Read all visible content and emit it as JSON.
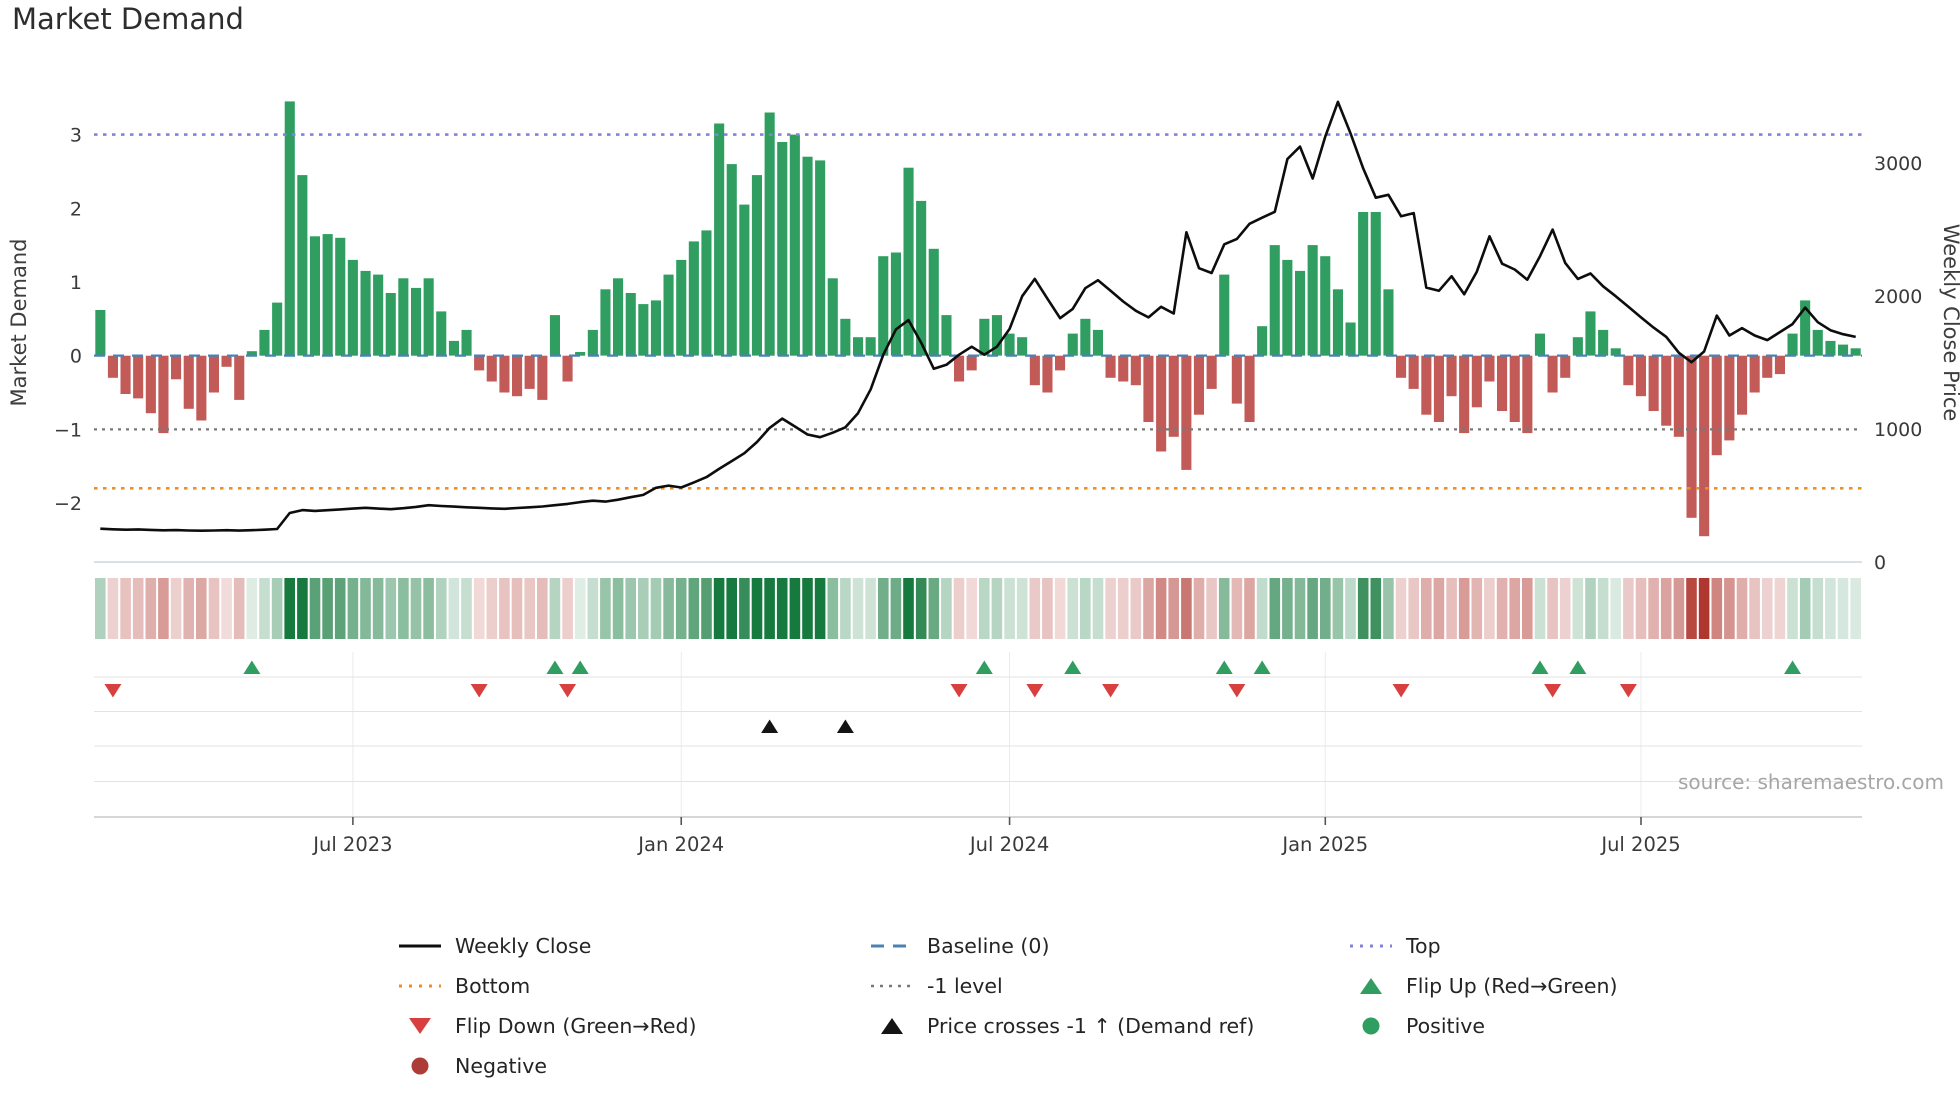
{
  "title": "Market Demand",
  "legend": {
    "weekly_close": "Weekly Close",
    "baseline": "Baseline (0)",
    "top": "Top",
    "bottom": "Bottom",
    "minus1": "-1 level",
    "flip_up": "Flip Up (Red→Green)",
    "flip_down": "Flip Down (Green→Red)",
    "price_cross": "Price crosses -1 ↑ (Demand ref)",
    "positive": "Positive",
    "negative": "Negative"
  },
  "chart_data": {
    "type": "combo",
    "title": "Market Demand",
    "source": "source: sharemaestro.com",
    "left_axis": {
      "label": "Market Demand",
      "ticks": [
        3,
        2,
        1,
        0,
        -1,
        -2
      ],
      "range": [
        -2.8,
        3.7
      ]
    },
    "right_axis": {
      "label": "Weekly Close Price",
      "ticks": [
        3000,
        2000,
        1000,
        0
      ],
      "range": [
        0,
        3600
      ]
    },
    "x_ticks": [
      {
        "label": "Jul 2023",
        "week": 20.5
      },
      {
        "label": "Jan 2024",
        "week": 46.5
      },
      {
        "label": "Jul 2024",
        "week": 72.5
      },
      {
        "label": "Jan 2025",
        "week": 97.5
      },
      {
        "label": "Jul 2025",
        "week": 122.5
      }
    ],
    "reference_lines": {
      "top": 3.0,
      "baseline": 0,
      "minus1": -1.0,
      "bottom": -1.8
    },
    "series": [
      {
        "name": "Market Demand",
        "type": "bar",
        "values": [
          0.62,
          -0.3,
          -0.52,
          -0.58,
          -0.78,
          -1.05,
          -0.32,
          -0.72,
          -0.88,
          -0.5,
          -0.15,
          -0.6,
          0.06,
          0.35,
          0.72,
          3.45,
          2.45,
          1.62,
          1.65,
          1.6,
          1.3,
          1.15,
          1.1,
          0.85,
          1.05,
          0.92,
          1.05,
          0.6,
          0.2,
          0.35,
          -0.2,
          -0.35,
          -0.5,
          -0.55,
          -0.45,
          -0.6,
          0.55,
          -0.35,
          0.05,
          0.35,
          0.9,
          1.05,
          0.85,
          0.7,
          0.75,
          1.1,
          1.3,
          1.55,
          1.7,
          3.15,
          2.6,
          2.05,
          2.45,
          3.3,
          2.9,
          3.0,
          2.7,
          2.65,
          1.05,
          0.5,
          0.25,
          0.25,
          1.35,
          1.4,
          2.55,
          2.1,
          1.45,
          0.55,
          -0.35,
          -0.2,
          0.5,
          0.55,
          0.3,
          0.25,
          -0.4,
          -0.5,
          -0.2,
          0.3,
          0.5,
          0.35,
          -0.3,
          -0.35,
          -0.4,
          -0.9,
          -1.3,
          -1.1,
          -1.55,
          -0.8,
          -0.45,
          1.1,
          -0.65,
          -0.9,
          0.4,
          1.5,
          1.3,
          1.15,
          1.5,
          1.35,
          0.9,
          0.45,
          1.95,
          1.95,
          0.9,
          -0.3,
          -0.45,
          -0.8,
          -0.9,
          -0.55,
          -1.05,
          -0.7,
          -0.35,
          -0.75,
          -0.9,
          -1.05,
          0.3,
          -0.5,
          -0.3,
          0.25,
          0.6,
          0.35,
          0.1,
          -0.4,
          -0.55,
          -0.75,
          -0.95,
          -1.1,
          -2.2,
          -2.45,
          -1.35,
          -1.15,
          -0.8,
          -0.5,
          -0.3,
          -0.25,
          0.3,
          0.75,
          0.35,
          0.2,
          0.15,
          0.1
        ]
      },
      {
        "name": "Weekly Close",
        "type": "line",
        "values": [
          250,
          246,
          243,
          245,
          241,
          238,
          240,
          237,
          235,
          237,
          239,
          236,
          239,
          243,
          248,
          368,
          390,
          384,
          389,
          395,
          401,
          407,
          401,
          397,
          404,
          414,
          427,
          421,
          416,
          411,
          407,
          403,
          400,
          406,
          411,
          417,
          427,
          437,
          450,
          461,
          454,
          468,
          487,
          504,
          558,
          574,
          560,
          598,
          638,
          700,
          758,
          818,
          902,
          1008,
          1078,
          1018,
          958,
          938,
          972,
          1012,
          1118,
          1298,
          1558,
          1748,
          1818,
          1648,
          1452,
          1482,
          1558,
          1618,
          1558,
          1618,
          1752,
          1998,
          2128,
          1978,
          1832,
          1902,
          2058,
          2118,
          2038,
          1958,
          1888,
          1838,
          1918,
          1868,
          2478,
          2208,
          2172,
          2388,
          2428,
          2542,
          2588,
          2632,
          3028,
          3122,
          2882,
          3198,
          3458,
          3222,
          2958,
          2738,
          2760,
          2598,
          2622,
          2062,
          2038,
          2148,
          2012,
          2182,
          2448,
          2242,
          2198,
          2122,
          2298,
          2498,
          2248,
          2128,
          2168,
          2072,
          1998,
          1918,
          1838,
          1762,
          1692,
          1572,
          1502,
          1582,
          1852,
          1702,
          1758,
          1702,
          1668,
          1728,
          1788,
          1912,
          1802,
          1742,
          1712,
          1692
        ]
      }
    ],
    "markers": {
      "flip_up_weeks": [
        12,
        36,
        38,
        70,
        77,
        89,
        92,
        114,
        117,
        134
      ],
      "flip_down_weeks": [
        1,
        30,
        37,
        68,
        74,
        80,
        90,
        103,
        115,
        121
      ],
      "price_cross_weeks": [
        53,
        59
      ]
    },
    "colors": {
      "positive_bar": "#2f9e60",
      "negative_bar": "#c25b58",
      "price_line": "#0d0d0d",
      "baseline": "#4b82b4",
      "top": "#8282da",
      "minus1": "#787878",
      "bottom": "#ee8f1f",
      "flip_up": "#2f9e60",
      "flip_down": "#d84040",
      "price_cross": "#141414",
      "positive_dot": "#2f9e60",
      "negative_dot": "#ad3c38",
      "heat_green": "#167a3e",
      "heat_red": "#b0372f"
    }
  }
}
